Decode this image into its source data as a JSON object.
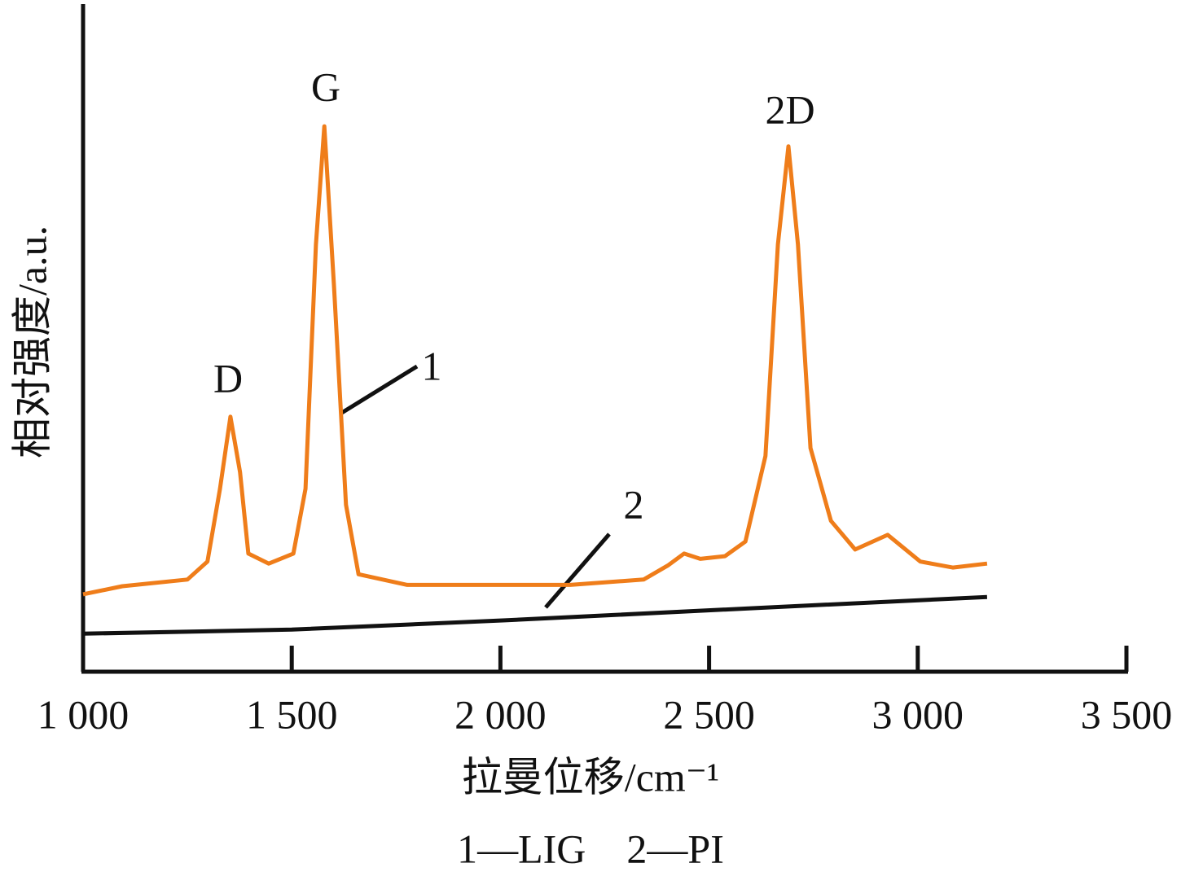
{
  "chart_data": {
    "type": "line",
    "xlabel": "拉曼位移/cm⁻¹",
    "ylabel": "相对强度/a.u.",
    "caption": "1—LIG　2—PI",
    "xlim": [
      1000,
      3500
    ],
    "xticks": [
      {
        "value": 1000,
        "label": "1 000"
      },
      {
        "value": 1500,
        "label": "1 500"
      },
      {
        "value": 2000,
        "label": "2 000"
      },
      {
        "value": 2500,
        "label": "2 500"
      },
      {
        "value": 3000,
        "label": "3 000"
      },
      {
        "value": 3500,
        "label": "3 500"
      }
    ],
    "ylim": [
      0,
      100
    ],
    "annotations": [
      "D",
      "G",
      "2D"
    ],
    "series": [
      {
        "label": "1",
        "color": "#ef7d1a",
        "x": [
          1000,
          1094,
          1250,
          1298,
          1328,
          1353,
          1376,
          1396,
          1445,
          1504,
          1533,
          1558,
          1578,
          1601,
          1630,
          1660,
          1777,
          2167,
          2343,
          2401,
          2440,
          2479,
          2538,
          2587,
          2635,
          2665,
          2690,
          2713,
          2743,
          2792,
          2850,
          2928,
          3006,
          3084,
          3166
        ],
        "values": [
          11.6,
          12.8,
          13.8,
          16.5,
          27.4,
          38.2,
          29.9,
          17.7,
          16.2,
          17.7,
          27.4,
          64.0,
          81.7,
          57.9,
          25.0,
          14.6,
          13.0,
          13.0,
          13.8,
          15.9,
          17.7,
          16.9,
          17.3,
          19.5,
          32.3,
          64.0,
          78.7,
          64.0,
          33.5,
          22.6,
          18.3,
          20.5,
          16.5,
          15.6,
          16.2
        ]
      },
      {
        "label": "2",
        "color": "#111111",
        "x": [
          1000,
          1500,
          2011,
          2600,
          3166
        ],
        "values": [
          5.7,
          6.3,
          7.7,
          9.5,
          11.2
        ]
      }
    ]
  }
}
